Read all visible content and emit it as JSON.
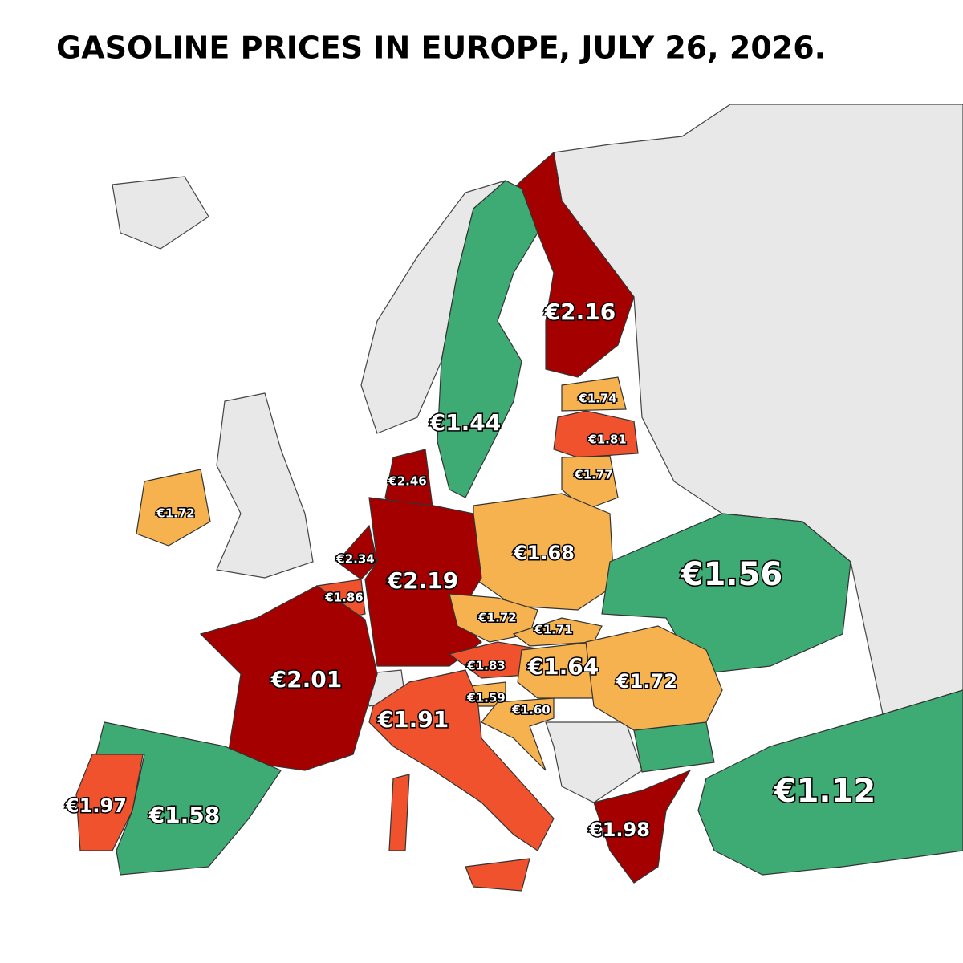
{
  "title": "GASOLINE PRICES IN EUROPE, JULY 26, 2026.",
  "regions": [
    {
      "label": "€2.16",
      "color": "#a50000"
    },
    {
      "label": "€1.44",
      "color": "#3dab73"
    },
    {
      "label": "€1.74",
      "color": "#f6b24e"
    },
    {
      "label": "€1.81",
      "color": "#f0522e"
    },
    {
      "label": "€1.77",
      "color": "#f6b24e"
    },
    {
      "label": "€2.46",
      "color": "#a50000"
    },
    {
      "label": "€1.72",
      "color": "#f6b24e"
    },
    {
      "label": "€1.68",
      "color": "#f6b24e"
    },
    {
      "label": "€1.56",
      "color": "#3dab73"
    },
    {
      "label": "€2.34",
      "color": "#a50000"
    },
    {
      "label": "€2.19",
      "color": "#a50000"
    },
    {
      "label": "€1.86",
      "color": "#f0522e"
    },
    {
      "label": "€1.72",
      "color": "#f6b24e"
    },
    {
      "label": "€1.71",
      "color": "#f6b24e"
    },
    {
      "label": "€1.83",
      "color": "#f0522e"
    },
    {
      "label": "€1.64",
      "color": "#f6b24e"
    },
    {
      "label": "€1.72",
      "color": "#f6b24e"
    },
    {
      "label": "€2.01",
      "color": "#a50000"
    },
    {
      "label": "€1.59",
      "color": "#f6b24e"
    },
    {
      "label": "€1.60",
      "color": "#f6b24e"
    },
    {
      "label": "€1.91",
      "color": "#f0522e"
    },
    {
      "label": "€1.97",
      "color": "#f0522e"
    },
    {
      "label": "€1.58",
      "color": "#3dab73"
    },
    {
      "label": "€1.98",
      "color": "#a50000"
    },
    {
      "label": "€1.12",
      "color": "#3dab73"
    }
  ]
}
